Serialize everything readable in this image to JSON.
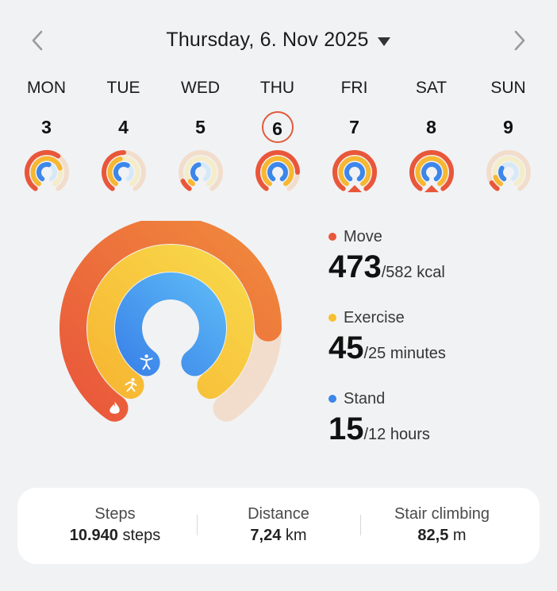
{
  "header": {
    "date_label": "Thursday, 6. Nov 2025"
  },
  "icons": {
    "prev": "chevron-left-icon",
    "next": "chevron-right-icon",
    "dropdown": "caret-down-icon",
    "move": "flame-icon",
    "exercise": "running-icon",
    "stand": "standing-person-icon"
  },
  "week": [
    {
      "name": "MON",
      "number": "3",
      "move": 0.62,
      "exercise": 0.75,
      "stand": 0.55,
      "selected": false
    },
    {
      "name": "TUE",
      "number": "4",
      "move": 0.5,
      "exercise": 0.45,
      "stand": 0.6,
      "selected": false
    },
    {
      "name": "WED",
      "number": "5",
      "move": 0.1,
      "exercise": 0.05,
      "stand": 0.45,
      "selected": false
    },
    {
      "name": "THU",
      "number": "6",
      "move": 0.81,
      "exercise": 1.0,
      "stand": 1.0,
      "selected": true
    },
    {
      "name": "FRI",
      "number": "7",
      "move": 1.0,
      "exercise": 1.0,
      "stand": 1.0,
      "selected": false
    },
    {
      "name": "SAT",
      "number": "8",
      "move": 1.0,
      "exercise": 1.0,
      "stand": 1.0,
      "selected": false
    },
    {
      "name": "SUN",
      "number": "9",
      "move": 0.08,
      "exercise": 0.12,
      "stand": 0.3,
      "selected": false
    }
  ],
  "metrics": {
    "move": {
      "label": "Move",
      "value": "473",
      "goal": "/582 kcal",
      "fraction": 0.81
    },
    "exercise": {
      "label": "Exercise",
      "value": "45",
      "goal": "/25 minutes",
      "fraction": 1.0
    },
    "stand": {
      "label": "Stand",
      "value": "15",
      "goal": "/12 hours",
      "fraction": 1.0
    }
  },
  "colors": {
    "move": "#e9573b",
    "move_end": "#f08a3c",
    "move_track": "#f2ddcc",
    "exercise": "#f7b733",
    "exercise_end": "#f8d84a",
    "exercise_track": "#f5ecc8",
    "stand": "#3d86ea",
    "stand_end": "#5ab6f5",
    "stand_track": "#d7e8f7",
    "selected_border": "#e05a3a",
    "background": "#f1f2f4"
  },
  "summary": {
    "steps": {
      "label": "Steps",
      "value": "10.940",
      "unit": "steps"
    },
    "distance": {
      "label": "Distance",
      "value": "7,24",
      "unit": "km"
    },
    "stairs": {
      "label": "Stair climbing",
      "value": "82,5",
      "unit": "m"
    }
  }
}
